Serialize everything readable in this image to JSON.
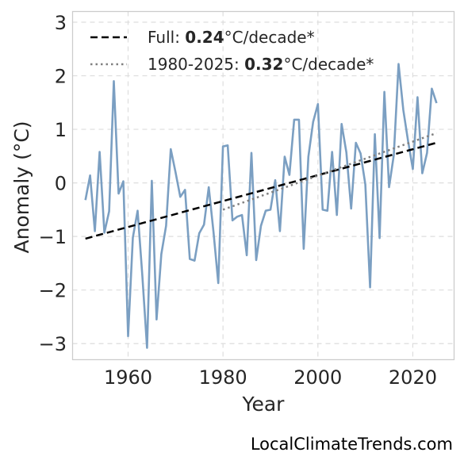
{
  "chart_data": {
    "type": "line",
    "xlabel": "Year",
    "ylabel": "Anomaly (°C)",
    "xlim": [
      1948.3,
      2028.7
    ],
    "ylim": [
      -3.3,
      3.2
    ],
    "x_ticks": [
      1960,
      1980,
      2000,
      2020
    ],
    "y_ticks": [
      -3,
      -2,
      -1,
      0,
      1,
      2,
      3
    ],
    "y_tick_labels": [
      "−3",
      "−2",
      "−1",
      "0",
      "1",
      "2",
      "3"
    ],
    "grid": true,
    "legend_position": "top-left",
    "series": [
      {
        "kind": "line",
        "color": "#7b9fc2",
        "x": [
          1951,
          1952,
          1953,
          1954,
          1955,
          1956,
          1957,
          1958,
          1959,
          1960,
          1961,
          1962,
          1963,
          1964,
          1965,
          1966,
          1967,
          1968,
          1969,
          1970,
          1971,
          1972,
          1973,
          1974,
          1975,
          1976,
          1977,
          1978,
          1979,
          1980,
          1981,
          1982,
          1983,
          1984,
          1985,
          1986,
          1987,
          1988,
          1989,
          1990,
          1991,
          1992,
          1993,
          1994,
          1995,
          1996,
          1997,
          1998,
          1999,
          2000,
          2001,
          2002,
          2003,
          2004,
          2005,
          2006,
          2007,
          2008,
          2009,
          2010,
          2011,
          2012,
          2013,
          2014,
          2015,
          2016,
          2017,
          2018,
          2019,
          2020,
          2021,
          2022,
          2023,
          2024,
          2025
        ],
        "values": [
          -0.32,
          0.14,
          -0.9,
          0.58,
          -0.93,
          -0.53,
          1.9,
          -0.2,
          0.03,
          -2.86,
          -1.02,
          -0.52,
          -1.72,
          -3.08,
          0.04,
          -2.55,
          -1.33,
          -0.8,
          0.63,
          0.2,
          -0.26,
          -0.13,
          -1.42,
          -1.45,
          -0.94,
          -0.78,
          -0.08,
          -0.92,
          -1.87,
          0.68,
          0.7,
          -0.7,
          -0.63,
          -0.6,
          -1.35,
          0.56,
          -1.44,
          -0.8,
          -0.52,
          -0.5,
          0.05,
          -0.9,
          0.49,
          0.15,
          1.18,
          1.18,
          -1.23,
          0.49,
          1.14,
          1.47,
          -0.5,
          -0.52,
          0.58,
          -0.6,
          1.1,
          0.57,
          -0.48,
          0.75,
          0.55,
          -0.03,
          -1.95,
          0.91,
          -1.03,
          1.7,
          -0.08,
          0.52,
          2.22,
          1.36,
          0.78,
          0.26,
          1.6,
          0.18,
          0.56,
          1.76,
          1.49
        ]
      },
      {
        "kind": "trend",
        "name": "Full",
        "rate": "0.24",
        "color": "#000000",
        "dash": "dashed",
        "x": [
          1951,
          2025
        ],
        "values": [
          -1.04,
          0.75
        ]
      },
      {
        "kind": "trend",
        "name": "1980-2025",
        "rate": "0.32",
        "color": "#808080",
        "dash": "dotted",
        "x": [
          1980,
          2025
        ],
        "values": [
          -0.5,
          0.93
        ]
      }
    ],
    "legend": [
      {
        "name": "Full: ",
        "rate": "0.24",
        "unit": "°C/decade*"
      },
      {
        "name": "1980-2025: ",
        "rate": "0.32",
        "unit": "°C/decade*"
      }
    ]
  },
  "watermark": "LocalClimateTrends.com"
}
